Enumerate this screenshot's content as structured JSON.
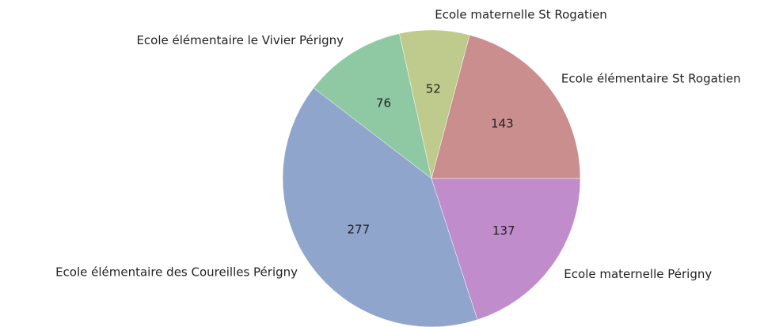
{
  "chart_data": {
    "type": "pie",
    "categories": [
      "Ecole élémentaire St Rogatien",
      "Ecole maternelle St Rogatien",
      "Ecole élémentaire le Vivier Périgny",
      "Ecole élémentaire des Coureilles Périgny",
      "Ecole maternelle Périgny"
    ],
    "values": [
      143,
      52,
      76,
      277,
      137
    ],
    "colors": [
      "#c98e8d",
      "#bfca8d",
      "#8fc9a3",
      "#8fa5cb",
      "#c08ccb"
    ]
  }
}
